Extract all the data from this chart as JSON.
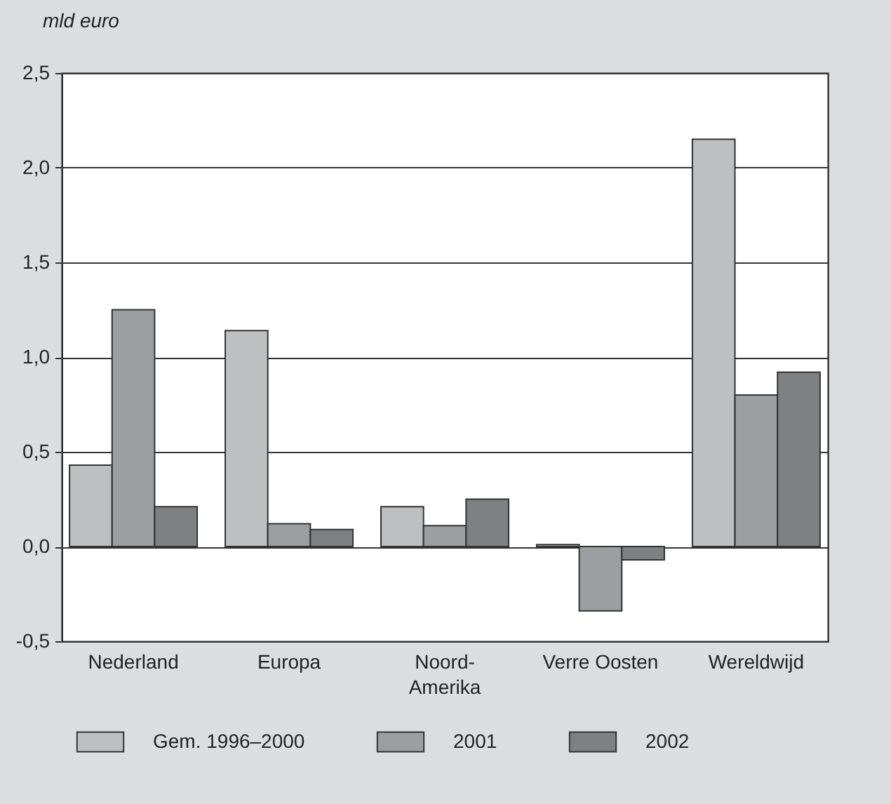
{
  "chart_data": {
    "type": "bar",
    "ylabel": "mld euro",
    "categories": [
      "Nederland",
      "Europa",
      "Noord-Amerika",
      "Verre Oosten",
      "Wereldwijd"
    ],
    "series": [
      {
        "name": "Gem. 1996–2000",
        "color": "#bebfc1",
        "values": [
          0.43,
          1.14,
          0.21,
          0.01,
          2.15
        ]
      },
      {
        "name": "2001",
        "color": "#9c9fa2",
        "values": [
          1.25,
          0.12,
          0.11,
          -0.34,
          0.8
        ]
      },
      {
        "name": "2002",
        "color": "#7f8082",
        "values": [
          0.21,
          0.09,
          0.25,
          -0.07,
          0.92
        ]
      }
    ],
    "ylim": [
      -0.5,
      2.5
    ],
    "yticks": [
      {
        "value": -0.5,
        "label": "-0,5"
      },
      {
        "value": 0,
        "label": "0,0"
      },
      {
        "value": 0.5,
        "label": "0,5"
      },
      {
        "value": 1,
        "label": "1,0"
      },
      {
        "value": 1.5,
        "label": "1,5"
      },
      {
        "value": 2,
        "label": "2,0"
      },
      {
        "value": 2.5,
        "label": "2,5"
      }
    ],
    "grid": "y",
    "legend": "bottom"
  }
}
